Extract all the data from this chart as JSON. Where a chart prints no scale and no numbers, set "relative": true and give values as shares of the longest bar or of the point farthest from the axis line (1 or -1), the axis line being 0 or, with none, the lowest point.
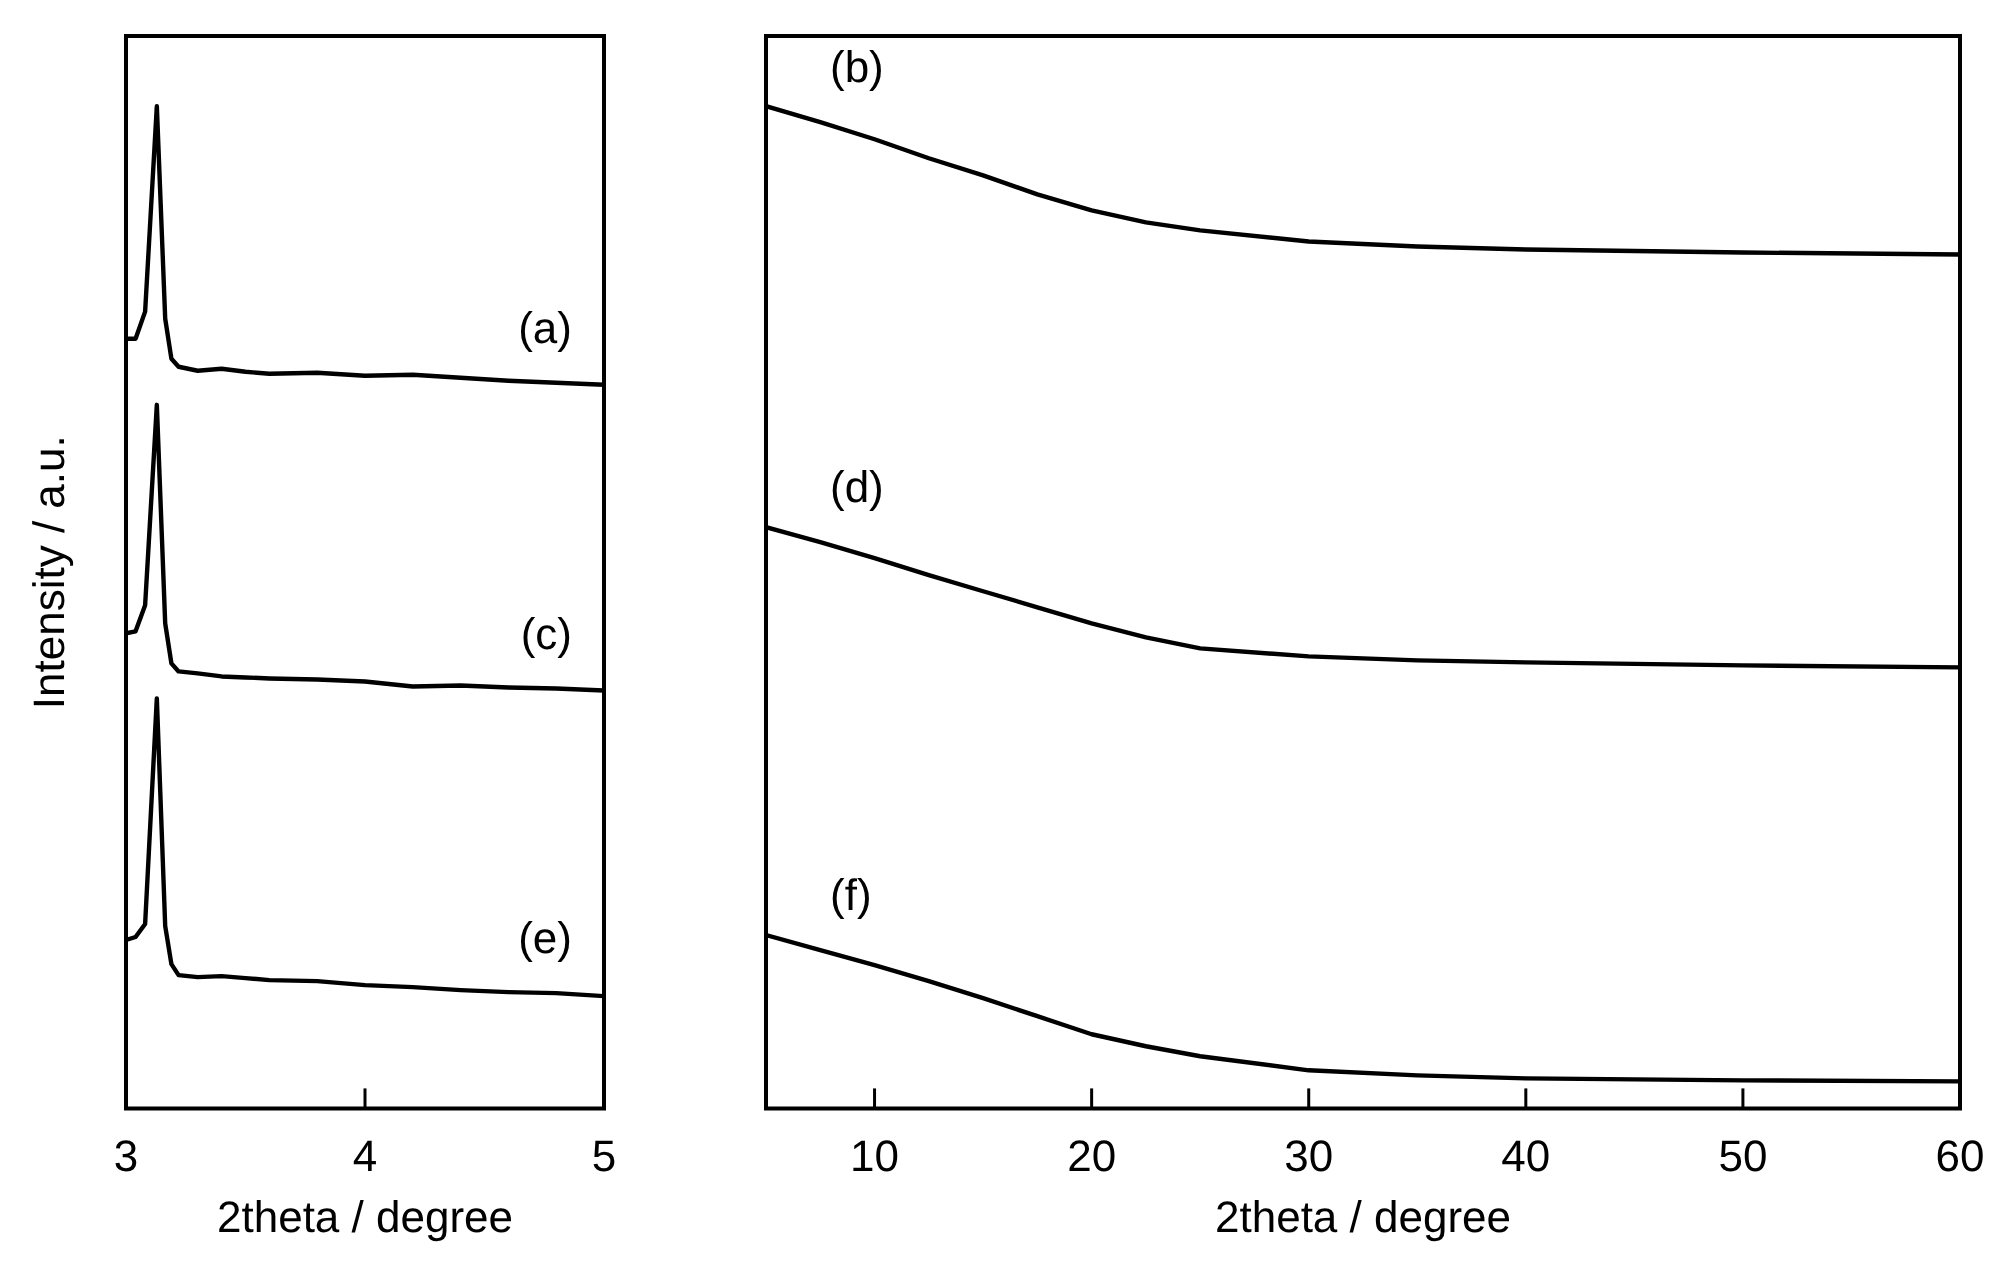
{
  "chart_data": [
    {
      "type": "line",
      "xlabel": "2theta / degree",
      "ylabel": "Intensity / a.u.",
      "relative": true,
      "xlim": [
        3,
        5
      ],
      "xticks": [
        3,
        4,
        5
      ],
      "marker": "none",
      "line_style": "solid",
      "grid": false,
      "legend": false,
      "series": [
        {
          "name": "(a)",
          "color": "#000000",
          "x": [
            3,
            3.04,
            3.08,
            3.129,
            3.164,
            3.19,
            3.22,
            3.3,
            3.4,
            3.5,
            3.6,
            3.8,
            4,
            4.2,
            4.4,
            4.6,
            4.8,
            5
          ],
          "values": [
            0.768,
            0.768,
            0.795,
            1,
            0.788,
            0.748,
            0.74,
            0.736,
            0.738,
            0.735,
            0.733,
            0.734,
            0.731,
            0.732,
            0.729,
            0.726,
            0.724,
            0.722
          ]
        },
        {
          "name": "(c)",
          "color": "#000000",
          "x": [
            3,
            3.04,
            3.08,
            3.129,
            3.164,
            3.19,
            3.22,
            3.3,
            3.4,
            3.5,
            3.6,
            3.8,
            4,
            4.2,
            4.4,
            4.6,
            4.8,
            5
          ],
          "values": [
            0.474,
            0.476,
            0.502,
            0.702,
            0.484,
            0.444,
            0.436,
            0.434,
            0.431,
            0.43,
            0.429,
            0.428,
            0.426,
            0.421,
            0.422,
            0.42,
            0.419,
            0.417
          ]
        },
        {
          "name": "(e)",
          "color": "#000000",
          "x": [
            3,
            3.04,
            3.08,
            3.129,
            3.164,
            3.19,
            3.22,
            3.3,
            3.4,
            3.5,
            3.6,
            3.8,
            4,
            4.2,
            4.4,
            4.6,
            4.8,
            5
          ],
          "values": [
            0.168,
            0.171,
            0.184,
            0.409,
            0.182,
            0.144,
            0.133,
            0.131,
            0.132,
            0.13,
            0.128,
            0.127,
            0.123,
            0.121,
            0.118,
            0.116,
            0.115,
            0.112
          ]
        }
      ]
    },
    {
      "type": "line",
      "xlabel": "2theta / degree",
      "relative": true,
      "xlim": [
        5,
        60
      ],
      "xticks": [
        10,
        20,
        30,
        40,
        50,
        60
      ],
      "marker": "none",
      "line_style": "solid",
      "grid": false,
      "legend": false,
      "series": [
        {
          "name": "(b)",
          "color": "#000000",
          "x": [
            5,
            7.5,
            10,
            12.5,
            15,
            17.5,
            20,
            22.5,
            25,
            30,
            35,
            40,
            50,
            60
          ],
          "values": [
            1,
            0.984,
            0.967,
            0.948,
            0.931,
            0.912,
            0.896,
            0.884,
            0.876,
            0.865,
            0.86,
            0.857,
            0.854,
            0.852
          ]
        },
        {
          "name": "(d)",
          "color": "#000000",
          "x": [
            5,
            7.5,
            10,
            12.5,
            15,
            17.5,
            20,
            22.5,
            25,
            30,
            35,
            40,
            50,
            60
          ],
          "values": [
            0.58,
            0.565,
            0.549,
            0.532,
            0.516,
            0.5,
            0.484,
            0.47,
            0.459,
            0.451,
            0.447,
            0.445,
            0.442,
            0.44
          ]
        },
        {
          "name": "(f)",
          "color": "#000000",
          "x": [
            5,
            7.5,
            10,
            12.5,
            15,
            17.5,
            20,
            22.5,
            25,
            30,
            35,
            40,
            50,
            60
          ],
          "values": [
            0.173,
            0.158,
            0.143,
            0.127,
            0.11,
            0.092,
            0.074,
            0.062,
            0.052,
            0.038,
            0.033,
            0.03,
            0.028,
            0.027
          ]
        }
      ]
    }
  ]
}
